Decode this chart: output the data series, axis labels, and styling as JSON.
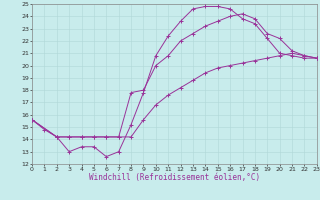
{
  "xlabel": "Windchill (Refroidissement éolien,°C)",
  "xlim": [
    0,
    23
  ],
  "ylim": [
    12,
    25
  ],
  "xticks": [
    0,
    1,
    2,
    3,
    4,
    5,
    6,
    7,
    8,
    9,
    10,
    11,
    12,
    13,
    14,
    15,
    16,
    17,
    18,
    19,
    20,
    21,
    22,
    23
  ],
  "yticks": [
    12,
    13,
    14,
    15,
    16,
    17,
    18,
    19,
    20,
    21,
    22,
    23,
    24,
    25
  ],
  "bg_color": "#c8ecec",
  "grid_color": "#b0d8d8",
  "line_color": "#993399",
  "curve1_x": [
    0,
    1,
    2,
    3,
    4,
    5,
    6,
    7,
    8,
    9,
    10,
    11,
    12,
    13,
    14,
    15,
    16,
    17,
    18,
    19,
    20,
    21,
    22,
    23
  ],
  "curve1_y": [
    15.6,
    14.8,
    14.2,
    13.0,
    13.4,
    13.4,
    12.6,
    13.0,
    15.2,
    17.8,
    20.8,
    22.4,
    23.6,
    24.6,
    24.8,
    24.8,
    24.6,
    23.8,
    23.4,
    22.2,
    21.0,
    20.8,
    20.6,
    20.6
  ],
  "curve2_x": [
    0,
    2,
    3,
    4,
    5,
    6,
    7,
    8,
    9,
    10,
    11,
    12,
    13,
    14,
    15,
    16,
    17,
    18,
    19,
    20,
    21,
    22,
    23
  ],
  "curve2_y": [
    15.6,
    14.2,
    14.2,
    14.2,
    14.2,
    14.2,
    14.2,
    17.8,
    18.0,
    20.0,
    20.8,
    22.0,
    22.6,
    23.2,
    23.6,
    24.0,
    24.2,
    23.8,
    22.6,
    22.2,
    21.2,
    20.8,
    20.6
  ],
  "curve3_x": [
    0,
    2,
    3,
    4,
    5,
    6,
    7,
    8,
    9,
    10,
    11,
    12,
    13,
    14,
    15,
    16,
    17,
    18,
    19,
    20,
    21,
    22,
    23
  ],
  "curve3_y": [
    15.6,
    14.2,
    14.2,
    14.2,
    14.2,
    14.2,
    14.2,
    14.2,
    15.6,
    16.8,
    17.6,
    18.2,
    18.8,
    19.4,
    19.8,
    20.0,
    20.2,
    20.4,
    20.6,
    20.8,
    21.0,
    20.8,
    20.6
  ],
  "xlabel_fontsize": 5.5,
  "tick_fontsize": 4.5,
  "lw": 0.7,
  "ms": 2.5
}
